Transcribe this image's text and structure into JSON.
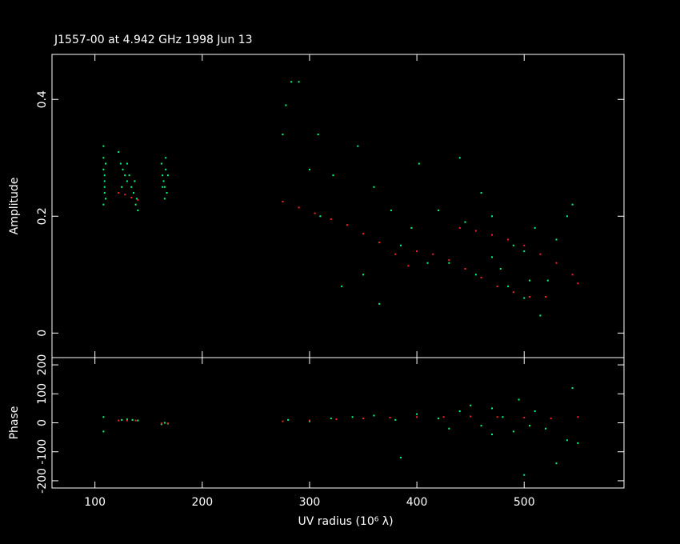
{
  "chart_data": [
    {
      "type": "scatter",
      "title": "J1557-00 at 4.942 GHz 1998 Jun 13",
      "ylabel": "Amplitude",
      "xlim": [
        60,
        593
      ],
      "xticks": [
        100,
        200,
        300,
        400,
        500
      ],
      "ylim": [
        -0.042,
        0.477
      ],
      "yticks": [
        0,
        0.2,
        0.4
      ],
      "series": [
        {
          "color": "#00ff7f",
          "x": [
            108,
            108,
            108,
            109,
            109,
            109,
            109,
            110,
            110,
            108,
            122,
            124,
            126,
            128,
            130,
            132,
            134,
            136,
            137,
            138,
            139,
            140,
            125,
            130,
            162,
            163,
            164,
            165,
            166,
            167,
            168,
            165,
            166,
            163,
            275,
            283,
            290,
            278,
            300,
            308,
            322,
            345,
            360,
            376,
            385,
            395,
            402,
            410,
            420,
            430,
            440,
            445,
            455,
            460,
            470,
            478,
            485,
            490,
            500,
            510,
            515,
            522,
            530,
            540,
            545,
            330,
            350,
            365,
            310,
            500,
            470,
            505
          ],
          "values": [
            0.32,
            0.3,
            0.28,
            0.27,
            0.26,
            0.25,
            0.24,
            0.23,
            0.29,
            0.22,
            0.31,
            0.29,
            0.28,
            0.27,
            0.26,
            0.27,
            0.25,
            0.24,
            0.26,
            0.22,
            0.23,
            0.21,
            0.25,
            0.29,
            0.29,
            0.27,
            0.26,
            0.25,
            0.28,
            0.24,
            0.27,
            0.23,
            0.3,
            0.25,
            0.34,
            0.43,
            0.43,
            0.39,
            0.28,
            0.34,
            0.27,
            0.32,
            0.25,
            0.21,
            0.15,
            0.18,
            0.29,
            0.12,
            0.21,
            0.12,
            0.3,
            0.19,
            0.1,
            0.24,
            0.2,
            0.11,
            0.08,
            0.15,
            0.14,
            0.18,
            0.03,
            0.09,
            0.16,
            0.2,
            0.22,
            0.08,
            0.1,
            0.05,
            0.2,
            0.06,
            0.13,
            0.09
          ]
        },
        {
          "color": "#ff2020",
          "x": [
            122,
            128,
            134,
            140,
            275,
            290,
            305,
            320,
            335,
            350,
            365,
            380,
            392,
            400,
            415,
            430,
            445,
            460,
            475,
            490,
            505,
            520,
            440,
            455,
            470,
            485,
            500,
            515,
            530,
            545,
            550
          ],
          "values": [
            0.24,
            0.237,
            0.232,
            0.228,
            0.225,
            0.215,
            0.205,
            0.195,
            0.185,
            0.17,
            0.155,
            0.135,
            0.115,
            0.14,
            0.135,
            0.125,
            0.11,
            0.095,
            0.08,
            0.07,
            0.062,
            0.062,
            0.18,
            0.175,
            0.168,
            0.16,
            0.15,
            0.135,
            0.12,
            0.1,
            0.085
          ]
        }
      ]
    },
    {
      "type": "scatter",
      "ylabel": "Phase",
      "xlabel": "UV radius  (10⁶ λ)",
      "xlim": [
        60,
        593
      ],
      "xticks": [
        100,
        200,
        300,
        400,
        500
      ],
      "ylim": [
        -225,
        225
      ],
      "yticks": [
        -200,
        -100,
        0,
        100,
        200
      ],
      "series": [
        {
          "color": "#00ff7f",
          "x": [
            108,
            108,
            125,
            130,
            135,
            140,
            162,
            165,
            168,
            280,
            300,
            320,
            340,
            360,
            380,
            385,
            400,
            420,
            440,
            450,
            460,
            470,
            480,
            490,
            495,
            500,
            510,
            520,
            530,
            540,
            545,
            550,
            430,
            470,
            505
          ],
          "values": [
            20,
            -30,
            10,
            12,
            10,
            8,
            -5,
            0,
            -3,
            10,
            5,
            15,
            20,
            25,
            10,
            -120,
            30,
            15,
            40,
            60,
            -10,
            50,
            20,
            -30,
            80,
            -180,
            40,
            -20,
            -140,
            -60,
            120,
            -70,
            -20,
            -40,
            -10
          ]
        },
        {
          "color": "#ff2020",
          "x": [
            122,
            130,
            138,
            162,
            168,
            275,
            300,
            325,
            350,
            375,
            400,
            425,
            450,
            475,
            500,
            525,
            550
          ],
          "values": [
            8,
            8,
            8,
            -2,
            -2,
            5,
            8,
            12,
            15,
            18,
            20,
            20,
            22,
            20,
            18,
            15,
            20
          ]
        }
      ]
    }
  ]
}
